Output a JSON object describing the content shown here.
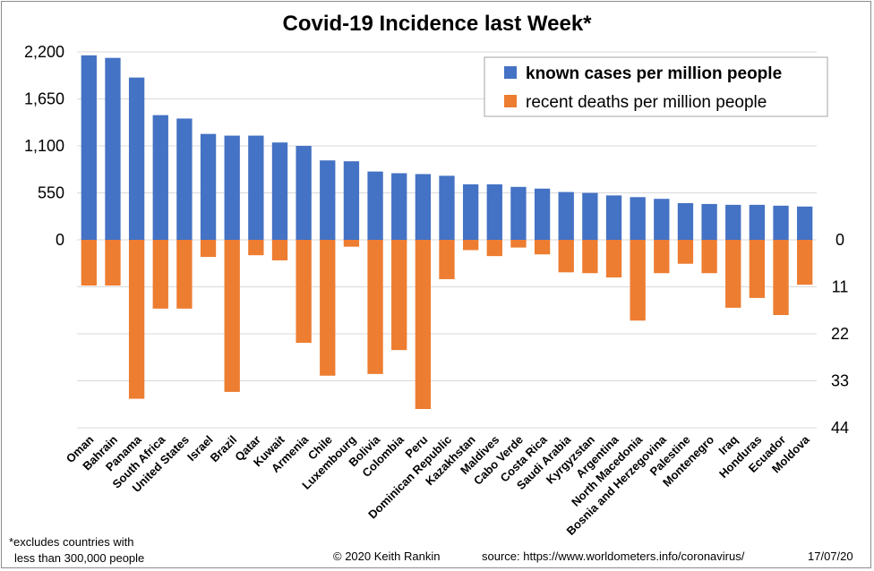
{
  "chart_data": {
    "type": "bar",
    "title": "Covid-19 Incidence last Week*",
    "categories": [
      "Oman",
      "Bahrain",
      "Panama",
      "South Africa",
      "United States",
      "Israel",
      "Brazil",
      "Qatar",
      "Kuwait",
      "Armenia",
      "Chile",
      "Luxembourg",
      "Bolivia",
      "Colombia",
      "Peru",
      "Dominican Republic",
      "Kazakhstan",
      "Maldives",
      "Cabo Verde",
      "Costa Rica",
      "Saudi Arabia",
      "Kyrgyzstan",
      "Argentina",
      "North Macedonia",
      "Bosnia and Herzegovina",
      "Palestine",
      "Montenegro",
      "Iraq",
      "Honduras",
      "Ecuador",
      "Moldova"
    ],
    "series": [
      {
        "name": "known cases per million people",
        "color": "#4472C4",
        "axis": "left",
        "values": [
          2160,
          2130,
          1900,
          1460,
          1420,
          1240,
          1220,
          1220,
          1140,
          1100,
          930,
          920,
          800,
          780,
          770,
          750,
          650,
          650,
          620,
          600,
          560,
          550,
          520,
          500,
          480,
          430,
          420,
          410,
          410,
          400,
          390
        ]
      },
      {
        "name": "recent deaths per million people",
        "color": "#ED7D31",
        "axis": "right",
        "values": [
          10.7,
          10.7,
          37.2,
          16.1,
          16.1,
          4.0,
          35.6,
          3.6,
          4.8,
          24.1,
          31.8,
          1.6,
          31.4,
          25.8,
          39.6,
          9.2,
          2.4,
          3.8,
          1.8,
          3.4,
          7.6,
          7.8,
          8.8,
          18.9,
          7.8,
          5.6,
          7.8,
          15.9,
          13.6,
          17.6,
          10.5
        ]
      }
    ],
    "left_axis": {
      "ticks": [
        "2,200",
        "1,650",
        "1,100",
        "550",
        "0"
      ],
      "range": [
        0,
        2200
      ]
    },
    "right_axis": {
      "ticks": [
        "0",
        "11",
        "22",
        "33",
        "44"
      ],
      "range": [
        0,
        44
      ],
      "inverted": true
    },
    "legend_position": "top-right",
    "grid": true
  },
  "footer": {
    "note_line1": "*excludes countries with",
    "note_line2": "less than 300,000 people",
    "copyright": "© 2020  Keith Rankin",
    "source": "source:  https://www.worldometers.info/coronavirus/",
    "date": "17/07/20"
  }
}
